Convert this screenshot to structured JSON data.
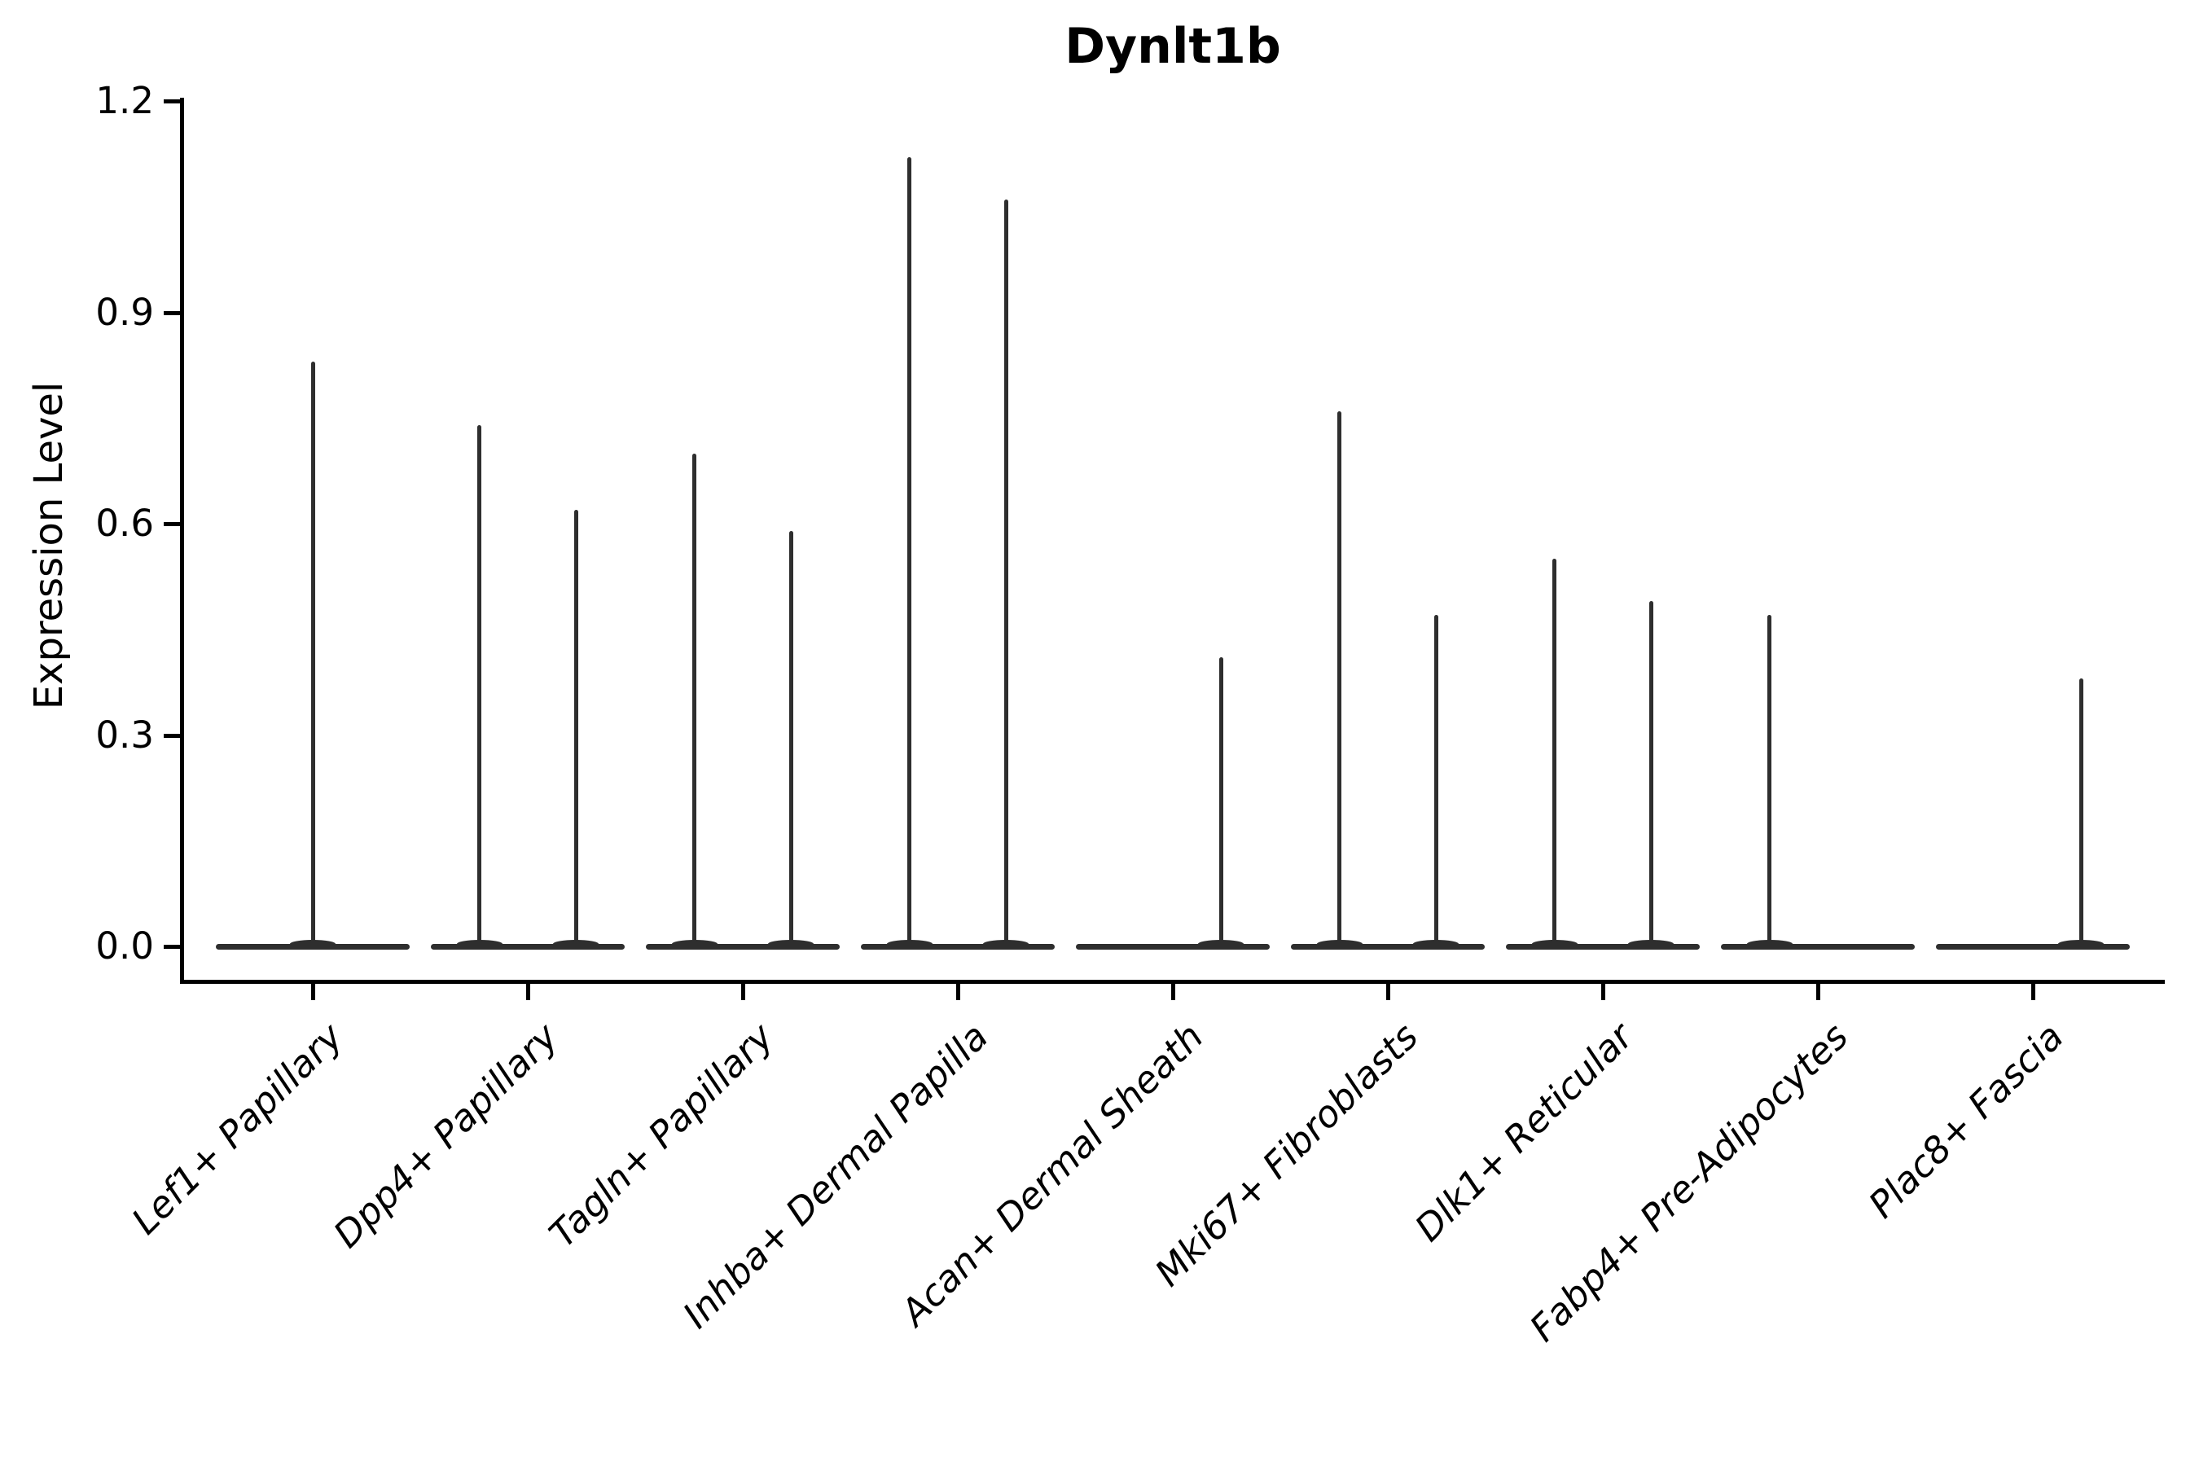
{
  "chart_data": {
    "type": "violin",
    "title": "Dynlt1b",
    "ylabel": "Expression Level",
    "xlabel": "",
    "ylim": [
      0.0,
      1.2
    ],
    "yticks": [
      "0.0",
      "0.3",
      "0.6",
      "0.9",
      "1.2"
    ],
    "ytick_values": [
      0.0,
      0.3,
      0.6,
      0.9,
      1.2
    ],
    "grid": false,
    "legend": "none",
    "categories": [
      "Lef1+ Papillary",
      "Dpp4+ Papillary",
      "Tagln+ Papillary",
      "Inhba+ Dermal Papilla",
      "Acan+ Dermal Sheath",
      "Mki67+ Fibroblasts",
      "Dlk1+ Reticular",
      "Fabp4+ Pre-Adipocytes",
      "Plac8+ Fascia"
    ],
    "baseline_expression": 0.0,
    "violins": [
      {
        "category": "Lef1+ Papillary",
        "position": "center",
        "max_expression": 0.83
      },
      {
        "category": "Dpp4+ Papillary",
        "position": "left",
        "max_expression": 0.74
      },
      {
        "category": "Dpp4+ Papillary",
        "position": "right",
        "max_expression": 0.62
      },
      {
        "category": "Tagln+ Papillary",
        "position": "left",
        "max_expression": 0.7
      },
      {
        "category": "Tagln+ Papillary",
        "position": "right",
        "max_expression": 0.59
      },
      {
        "category": "Inhba+ Dermal Papilla",
        "position": "left",
        "max_expression": 1.12
      },
      {
        "category": "Inhba+ Dermal Papilla",
        "position": "right",
        "max_expression": 1.06
      },
      {
        "category": "Acan+ Dermal Sheath",
        "position": "right",
        "max_expression": 0.41
      },
      {
        "category": "Mki67+ Fibroblasts",
        "position": "left",
        "max_expression": 0.76
      },
      {
        "category": "Mki67+ Fibroblasts",
        "position": "right",
        "max_expression": 0.47
      },
      {
        "category": "Dlk1+ Reticular",
        "position": "left",
        "max_expression": 0.55
      },
      {
        "category": "Dlk1+ Reticular",
        "position": "right",
        "max_expression": 0.49
      },
      {
        "category": "Fabp4+ Pre-Adipocytes",
        "position": "left",
        "max_expression": 0.47
      },
      {
        "category": "Plac8+ Fascia",
        "position": "right",
        "max_expression": 0.38
      }
    ]
  },
  "colors": {
    "violin": "#2e2e2e",
    "ink": "#000000",
    "background": "#ffffff"
  }
}
